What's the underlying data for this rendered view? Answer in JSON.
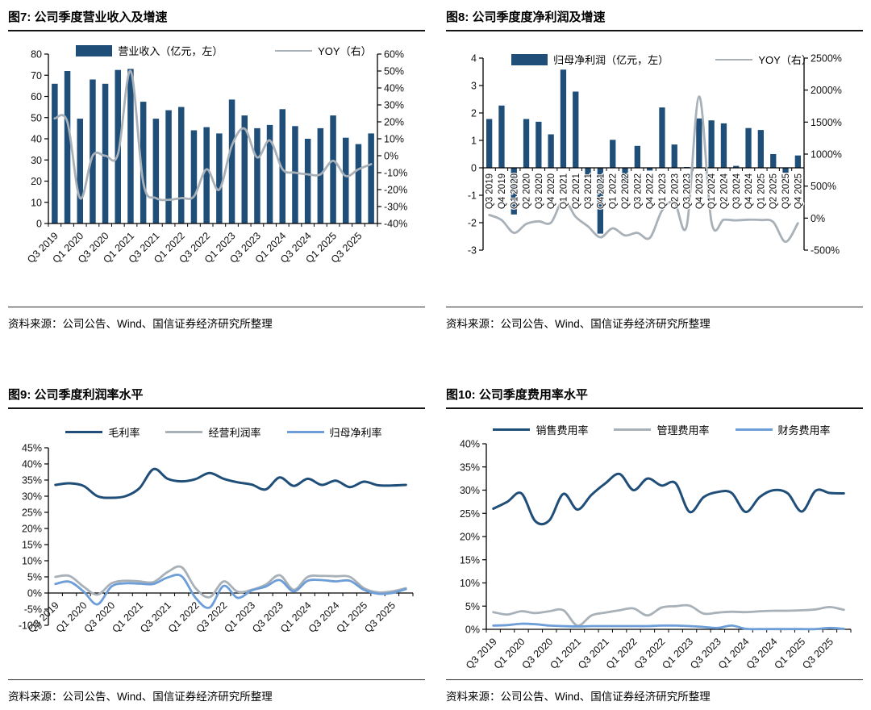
{
  "page": {
    "source_note": "资料来源：公司公告、Wind、国信证券经济研究所整理"
  },
  "colors": {
    "navy": "#1F4E79",
    "gray": "#A8B0B8",
    "blue": "#6D9ED8",
    "axis": "#000000"
  },
  "chart_data": [
    {
      "id": "fig7",
      "type": "bar+line",
      "title": "图7: 公司季度营业收入及增速",
      "categories": [
        "Q3 2019",
        "Q4 2019",
        "Q1 2020",
        "Q2 2020",
        "Q3 2020",
        "Q4 2020",
        "Q1 2021",
        "Q2 2021",
        "Q3 2021",
        "Q4 2021",
        "Q1 2022",
        "Q2 2022",
        "Q3 2022",
        "Q4 2022",
        "Q1 2023",
        "Q2 2023",
        "Q3 2023",
        "Q4 2023",
        "Q1 2024",
        "Q2 2024",
        "Q3 2024",
        "Q4 2024",
        "Q1 2025",
        "Q2 2025",
        "Q3 2025",
        "Q4 2025"
      ],
      "x_tick_labels": [
        "Q3 2019",
        "Q1 2020",
        "Q3 2020",
        "Q1 2021",
        "Q3 2021",
        "Q1 2022",
        "Q3 2022",
        "Q1 2023",
        "Q3 2023",
        "Q1 2024",
        "Q3 2024",
        "Q1 2025",
        "Q3 2025"
      ],
      "x_label_mode": "diag-every2",
      "left_axis": {
        "min": 0,
        "max": 80,
        "step": 10,
        "suffix": ""
      },
      "right_axis": {
        "min": -40,
        "max": 60,
        "step": 10,
        "suffix": "%"
      },
      "series": [
        {
          "name": "营业收入（亿元，左）",
          "type": "bar",
          "axis": "left",
          "color_key": "navy",
          "values": [
            66,
            72,
            49.5,
            68,
            66,
            72.5,
            73,
            57.5,
            49.5,
            53.5,
            55,
            44,
            45.5,
            42.5,
            58.5,
            51,
            45,
            46.5,
            54,
            46,
            40,
            45,
            51,
            40.5,
            37.5,
            42.5
          ]
        },
        {
          "name": "YOY（右）",
          "type": "line",
          "axis": "right",
          "color_key": "gray",
          "values": [
            22,
            20,
            -25,
            0,
            0,
            1,
            50,
            -16,
            -25,
            -26,
            -25,
            -24,
            -8,
            -20,
            6,
            16,
            -1,
            9,
            -8,
            -10,
            -11,
            -11,
            -3,
            -12,
            -8,
            -5
          ]
        }
      ]
    },
    {
      "id": "fig8",
      "type": "bar+line",
      "title": "图8: 公司季度度净利润及增速",
      "categories": [
        "Q3 2019",
        "Q4 2019",
        "Q1 2020",
        "Q2 2020",
        "Q3 2020",
        "Q4 2020",
        "Q1 2021",
        "Q2 2021",
        "Q3 2021",
        "Q4 2021",
        "Q1 2022",
        "Q2 2022",
        "Q3 2022",
        "Q4 2022",
        "Q1 2023",
        "Q2 2023",
        "Q3 2023",
        "Q4 2023",
        "Q1 2024",
        "Q2 2024",
        "Q3 2024",
        "Q4 2024",
        "Q1 2025",
        "Q2 2025",
        "Q3 2025",
        "Q4 2025"
      ],
      "x_label_mode": "vert-all",
      "left_axis": {
        "min": -3,
        "max": 4,
        "step": 1,
        "suffix": ""
      },
      "right_axis": {
        "min": -500,
        "max": 2500,
        "step": 500,
        "suffix": "%"
      },
      "series": [
        {
          "name": "归母净利润（亿元，左）",
          "type": "bar",
          "axis": "left",
          "color_key": "navy",
          "values": [
            1.78,
            2.27,
            -1.7,
            1.78,
            1.68,
            1.22,
            3.58,
            2.78,
            -0.35,
            -2.4,
            1.02,
            -0.65,
            0.8,
            -0.1,
            2.2,
            0.85,
            0.03,
            1.8,
            1.73,
            1.62,
            0.07,
            1.45,
            1.38,
            0.5,
            -0.18,
            0.45
          ]
        },
        {
          "name": "YOY（右）",
          "type": "line",
          "axis": "right",
          "color_key": "gray",
          "values": [
            50,
            -30,
            -230,
            -90,
            -50,
            -70,
            280,
            20,
            -130,
            -300,
            -160,
            -270,
            -230,
            -310,
            120,
            250,
            -115,
            1900,
            -60,
            -25,
            -35,
            -25,
            -30,
            -60,
            -370,
            -80
          ]
        }
      ]
    },
    {
      "id": "fig9",
      "type": "line",
      "title": "图9: 公司季度利润率水平",
      "categories": [
        "Q3 2019",
        "Q4 2019",
        "Q1 2020",
        "Q2 2020",
        "Q3 2020",
        "Q4 2020",
        "Q1 2021",
        "Q2 2021",
        "Q3 2021",
        "Q4 2021",
        "Q1 2022",
        "Q2 2022",
        "Q3 2022",
        "Q4 2022",
        "Q1 2023",
        "Q2 2023",
        "Q3 2023",
        "Q4 2023",
        "Q1 2024",
        "Q2 2024",
        "Q3 2024",
        "Q4 2024",
        "Q1 2025",
        "Q2 2025",
        "Q3 2025",
        "Q4 2025"
      ],
      "x_tick_labels": [
        "Q3 2019",
        "Q1 2020",
        "Q3 2020",
        "Q1 2021",
        "Q3 2021",
        "Q1 2022",
        "Q3 2022",
        "Q1 2023",
        "Q3 2023",
        "Q1 2024",
        "Q3 2024",
        "Q1 2025",
        "Q3 2025"
      ],
      "x_label_mode": "diag-every2",
      "left_axis": {
        "min": -10,
        "max": 45,
        "step": 5,
        "suffix": "%"
      },
      "series": [
        {
          "name": "毛利率",
          "type": "line",
          "axis": "left",
          "color_key": "navy",
          "values": [
            33.5,
            34,
            33.2,
            30,
            29.5,
            30,
            32.5,
            38.4,
            35.4,
            34.6,
            35.3,
            37.2,
            35.4,
            34.3,
            33.6,
            32.1,
            35.8,
            33.2,
            35.4,
            33.5,
            34.8,
            32.8,
            34.5,
            33.4,
            33.3,
            33.5
          ]
        },
        {
          "name": "经营利润率",
          "type": "line",
          "axis": "left",
          "color_key": "gray",
          "values": [
            5,
            5.3,
            2,
            -0.5,
            3,
            3.8,
            3.6,
            3.4,
            6.5,
            8,
            1.5,
            -1.3,
            3.6,
            0.4,
            1,
            2.6,
            5.5,
            1,
            5,
            5.3,
            5.2,
            5,
            1.5,
            0.2,
            0.5,
            1.5
          ]
        },
        {
          "name": "归母净利率",
          "type": "line",
          "axis": "left",
          "color_key": "blue",
          "values": [
            2.8,
            3.5,
            0.5,
            -3.5,
            2,
            3,
            2.9,
            2.8,
            4.8,
            5.2,
            -1.5,
            -4.5,
            2.2,
            -1.5,
            0.8,
            2,
            4,
            0.5,
            3.8,
            4,
            3.6,
            3.8,
            1,
            -0.2,
            0,
            1.2
          ]
        }
      ]
    },
    {
      "id": "fig10",
      "type": "line",
      "title": "图10: 公司季度费用率水平",
      "categories": [
        "Q3 2019",
        "Q4 2019",
        "Q1 2020",
        "Q2 2020",
        "Q3 2020",
        "Q4 2020",
        "Q1 2021",
        "Q2 2021",
        "Q3 2021",
        "Q4 2021",
        "Q1 2022",
        "Q2 2022",
        "Q3 2022",
        "Q4 2022",
        "Q1 2023",
        "Q2 2023",
        "Q3 2023",
        "Q4 2023",
        "Q1 2024",
        "Q2 2024",
        "Q3 2024",
        "Q4 2024",
        "Q1 2025",
        "Q2 2025",
        "Q3 2025",
        "Q4 2025"
      ],
      "x_tick_labels": [
        "Q3 2019",
        "Q1 2020",
        "Q3 2020",
        "Q1 2021",
        "Q3 2021",
        "Q1 2022",
        "Q3 2022",
        "Q1 2023",
        "Q3 2023",
        "Q1 2024",
        "Q3 2024",
        "Q1 2025",
        "Q3 2025"
      ],
      "x_label_mode": "diag-every2",
      "left_axis": {
        "min": 0,
        "max": 40,
        "step": 5,
        "suffix": "%"
      },
      "series": [
        {
          "name": "销售费用率",
          "type": "line",
          "axis": "left",
          "color_key": "navy",
          "values": [
            26,
            27.5,
            29.3,
            23.3,
            23.5,
            29.2,
            25.8,
            29,
            31.5,
            33.5,
            30,
            32.5,
            31,
            31.5,
            25.3,
            28.5,
            29.6,
            29.4,
            25.3,
            28.5,
            30,
            29.3,
            25.4,
            29.9,
            29.4,
            29.3
          ]
        },
        {
          "name": "管理费用率",
          "type": "line",
          "axis": "left",
          "color_key": "gray",
          "values": [
            3.7,
            3.2,
            3.9,
            3.5,
            3.9,
            4.1,
            0.8,
            3,
            3.6,
            4.1,
            4.5,
            3,
            4.7,
            5,
            5.1,
            3.4,
            3.6,
            3.8,
            3.7,
            3.9,
            4,
            4,
            4.1,
            4.3,
            4.8,
            4.2
          ]
        },
        {
          "name": "财务费用率",
          "type": "line",
          "axis": "left",
          "color_key": "blue",
          "values": [
            0.8,
            0.9,
            1.2,
            1.1,
            0.8,
            0.7,
            0.6,
            0.7,
            0.7,
            0.7,
            0.7,
            0.7,
            0.8,
            0.8,
            0.7,
            0.5,
            0.3,
            0.8,
            0.1,
            0.05,
            0.05,
            0.05,
            0.05,
            0.05,
            0.3,
            0.1
          ]
        }
      ]
    }
  ]
}
